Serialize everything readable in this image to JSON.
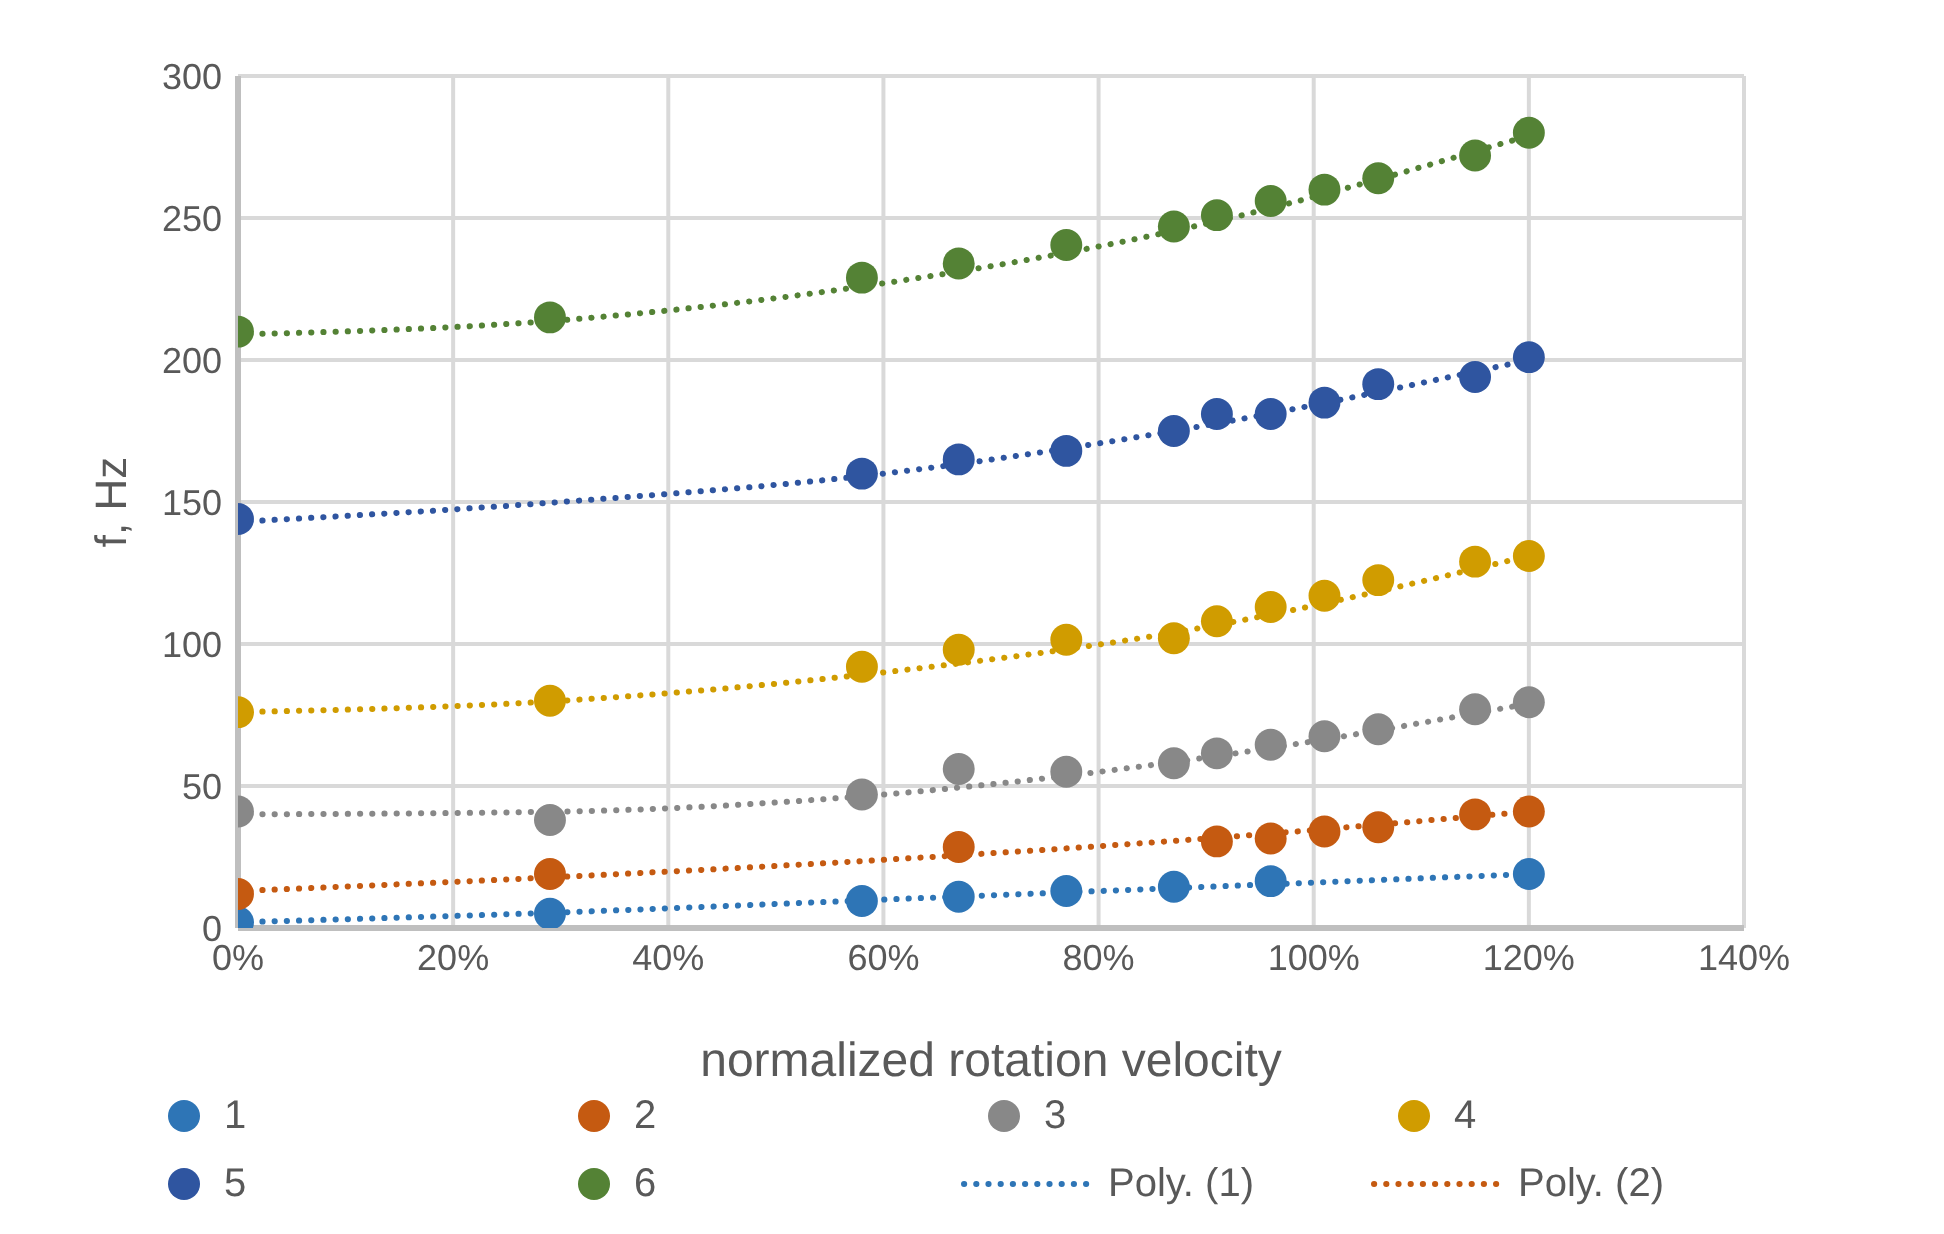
{
  "chart_data": {
    "type": "scatter",
    "xlabel": "normalized rotation velocity",
    "ylabel": "f, Hz",
    "xlim": [
      0,
      1.4
    ],
    "xticks": [
      {
        "value": 0,
        "label": "0%"
      },
      {
        "value": 0.2,
        "label": "20%"
      },
      {
        "value": 0.4,
        "label": "40%"
      },
      {
        "value": 0.6,
        "label": "60%"
      },
      {
        "value": 0.8,
        "label": "80%"
      },
      {
        "value": 1,
        "label": "100%"
      },
      {
        "value": 1.2,
        "label": "120%"
      },
      {
        "value": 1.4,
        "label": "140%"
      }
    ],
    "ylim": [
      0,
      300
    ],
    "yticks": [
      0,
      50,
      100,
      150,
      200,
      250,
      300
    ],
    "grid": true,
    "legend": "bottom",
    "marker": "circle",
    "series": [
      {
        "name": "1",
        "type": "scatter",
        "color": "#2e75b6",
        "x": [
          0,
          0.29,
          0.58,
          0.67,
          0.77,
          0.87,
          0.96,
          1.2
        ],
        "values": [
          2,
          5,
          9.5,
          11,
          13,
          14.5,
          16.5,
          19
        ]
      },
      {
        "name": "2",
        "type": "scatter",
        "color": "#c55a11",
        "x": [
          0,
          0.29,
          0.67,
          0.91,
          0.96,
          1.01,
          1.06,
          1.15,
          1.2
        ],
        "values": [
          12,
          19,
          28.5,
          30.5,
          31.5,
          34,
          35.5,
          40,
          41
        ]
      },
      {
        "name": "3",
        "type": "scatter",
        "color": "#888888",
        "x": [
          0,
          0.29,
          0.58,
          0.67,
          0.77,
          0.87,
          0.91,
          0.96,
          1.01,
          1.06,
          1.15,
          1.2
        ],
        "values": [
          41,
          38,
          47,
          56,
          55,
          58,
          61.5,
          64.5,
          67.5,
          70,
          77,
          79.5
        ]
      },
      {
        "name": "4",
        "type": "scatter",
        "color": "#d09c00",
        "x": [
          0,
          0.29,
          0.58,
          0.67,
          0.77,
          0.87,
          0.91,
          0.96,
          1.01,
          1.06,
          1.15,
          1.2
        ],
        "values": [
          76,
          80,
          92,
          98,
          101.5,
          102,
          108,
          113,
          117,
          122.5,
          129,
          131
        ]
      },
      {
        "name": "5",
        "type": "scatter",
        "color": "#2f55a0",
        "x": [
          0,
          0.58,
          0.67,
          0.77,
          0.87,
          0.91,
          0.96,
          1.01,
          1.06,
          1.15,
          1.2
        ],
        "values": [
          144,
          160,
          165,
          168,
          175,
          181,
          181,
          185,
          191.5,
          194,
          201
        ]
      },
      {
        "name": "6",
        "type": "scatter",
        "color": "#548235",
        "x": [
          0,
          0.29,
          0.58,
          0.67,
          0.77,
          0.87,
          0.91,
          0.96,
          1.01,
          1.06,
          1.15,
          1.2
        ],
        "values": [
          210,
          215,
          229,
          234,
          240.5,
          247,
          251,
          256,
          260,
          264,
          272,
          280
        ]
      },
      {
        "name": "Poly. (1)",
        "type": "line",
        "line_style": "dotted",
        "marker": "none",
        "color": "#2e75b6",
        "x": [
          0,
          0.3,
          0.6,
          0.9,
          1.2
        ],
        "values": [
          2,
          5.5,
          10,
          14.5,
          19
        ]
      },
      {
        "name": "Poly. (2)",
        "type": "line",
        "line_style": "dotted",
        "marker": "none",
        "color": "#c55a11",
        "x": [
          0,
          0.3,
          0.6,
          0.9,
          1.2
        ],
        "values": [
          13,
          18,
          24,
          31.5,
          41
        ]
      },
      {
        "type": "line",
        "line_style": "dotted",
        "marker": "none",
        "color": "#888888",
        "x": [
          0,
          0.3,
          0.6,
          0.9,
          1.2
        ],
        "values": [
          40,
          41,
          47,
          60,
          79
        ]
      },
      {
        "type": "line",
        "line_style": "dotted",
        "marker": "none",
        "color": "#d09c00",
        "x": [
          0,
          0.3,
          0.6,
          0.9,
          1.2
        ],
        "values": [
          76,
          80,
          90,
          106,
          131
        ]
      },
      {
        "type": "line",
        "line_style": "dotted",
        "marker": "none",
        "color": "#2f55a0",
        "x": [
          0,
          0.3,
          0.6,
          0.9,
          1.2
        ],
        "values": [
          143,
          150,
          160,
          177,
          200
        ]
      },
      {
        "type": "line",
        "line_style": "dotted",
        "marker": "none",
        "color": "#548235",
        "x": [
          0,
          0.3,
          0.6,
          0.9,
          1.2
        ],
        "values": [
          209,
          214,
          227,
          248,
          279
        ]
      }
    ]
  }
}
